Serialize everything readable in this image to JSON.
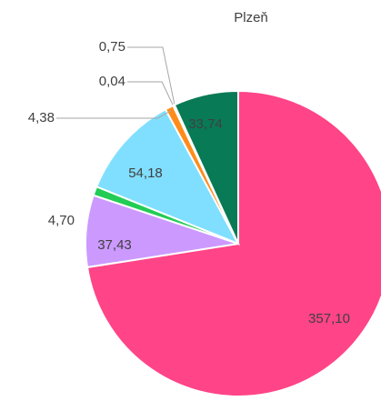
{
  "chart_data": {
    "type": "pie",
    "title": "Plzeň",
    "categories": [
      null,
      null,
      null,
      null,
      null,
      null,
      null,
      null
    ],
    "values": [
      357.1,
      37.43,
      4.7,
      54.18,
      4.38,
      0.04,
      0.75,
      33.74
    ],
    "value_labels": [
      "357,10",
      "37,43",
      "4,70",
      "54,18",
      "4,38",
      "0,04",
      "0,75",
      "33,74"
    ],
    "colors": [
      "#ff4488",
      "#cc99ff",
      "#22cc55",
      "#80dfff",
      "#ff8c1a",
      "#a5a5a5",
      "#ffc000",
      "#087a55"
    ]
  }
}
